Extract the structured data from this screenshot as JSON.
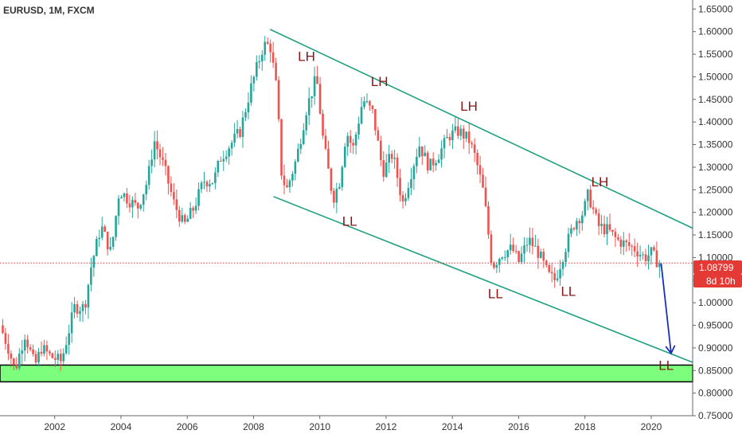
{
  "header": {
    "title": "EURUSD, 1M, FXCM"
  },
  "colors": {
    "up": "#26a69a",
    "down": "#ef5350",
    "channel": "#1fa080",
    "support_fill": "#7dff7d",
    "support_border": "#000000",
    "annotation": "#8b1414",
    "arrow": "#1a2fb5",
    "price_line": "#e53935",
    "price_badge": "#e53935",
    "axis_text": "#333333"
  },
  "price_badge": {
    "value": "1.08799",
    "countdown": "8d 10h"
  },
  "chart_data": {
    "type": "candlestick",
    "symbol": "EURUSD",
    "timeframe": "1M",
    "source": "FXCM",
    "title": "EURUSD, 1M, FXCM",
    "x_range": [
      2000.35,
      2021.25
    ],
    "y_range": [
      0.75,
      1.67
    ],
    "x_ticks": [
      "2002",
      "2004",
      "2006",
      "2008",
      "2010",
      "2012",
      "2014",
      "2016",
      "2018",
      "2020"
    ],
    "y_ticks": [
      "0.75000",
      "0.80000",
      "0.85000",
      "0.90000",
      "0.95000",
      "1.00000",
      "1.05000",
      "1.10000",
      "1.15000",
      "1.20000",
      "1.25000",
      "1.30000",
      "1.35000",
      "1.40000",
      "1.45000",
      "1.50000",
      "1.55000",
      "1.60000",
      "1.65000"
    ],
    "current_price": 1.08799,
    "path": [
      [
        2000.35,
        0.95
      ],
      [
        2000.6,
        0.9
      ],
      [
        2000.8,
        0.85
      ],
      [
        2001.1,
        0.93
      ],
      [
        2001.4,
        0.86
      ],
      [
        2001.6,
        0.9
      ],
      [
        2001.9,
        0.88
      ],
      [
        2002.2,
        0.87
      ],
      [
        2002.6,
        0.99
      ],
      [
        2002.9,
        0.99
      ],
      [
        2003.1,
        1.08
      ],
      [
        2003.4,
        1.17
      ],
      [
        2003.7,
        1.11
      ],
      [
        2003.95,
        1.25
      ],
      [
        2004.2,
        1.23
      ],
      [
        2004.5,
        1.21
      ],
      [
        2004.8,
        1.27
      ],
      [
        2005.0,
        1.36
      ],
      [
        2005.3,
        1.3
      ],
      [
        2005.6,
        1.22
      ],
      [
        2005.9,
        1.17
      ],
      [
        2006.2,
        1.21
      ],
      [
        2006.5,
        1.27
      ],
      [
        2006.8,
        1.27
      ],
      [
        2007.0,
        1.32
      ],
      [
        2007.3,
        1.35
      ],
      [
        2007.6,
        1.38
      ],
      [
        2007.9,
        1.47
      ],
      [
        2008.1,
        1.52
      ],
      [
        2008.3,
        1.57
      ],
      [
        2008.5,
        1.57
      ],
      [
        2008.7,
        1.47
      ],
      [
        2008.85,
        1.28
      ],
      [
        2009.0,
        1.25
      ],
      [
        2009.3,
        1.32
      ],
      [
        2009.6,
        1.43
      ],
      [
        2009.9,
        1.5
      ],
      [
        2010.1,
        1.36
      ],
      [
        2010.4,
        1.23
      ],
      [
        2010.6,
        1.27
      ],
      [
        2010.8,
        1.38
      ],
      [
        2011.0,
        1.34
      ],
      [
        2011.3,
        1.45
      ],
      [
        2011.6,
        1.42
      ],
      [
        2011.9,
        1.29
      ],
      [
        2012.2,
        1.33
      ],
      [
        2012.5,
        1.22
      ],
      [
        2012.8,
        1.3
      ],
      [
        2013.0,
        1.35
      ],
      [
        2013.3,
        1.3
      ],
      [
        2013.6,
        1.33
      ],
      [
        2013.9,
        1.37
      ],
      [
        2014.2,
        1.38
      ],
      [
        2014.5,
        1.36
      ],
      [
        2014.7,
        1.32
      ],
      [
        2014.95,
        1.24
      ],
      [
        2015.2,
        1.08
      ],
      [
        2015.5,
        1.11
      ],
      [
        2015.8,
        1.12
      ],
      [
        2016.0,
        1.09
      ],
      [
        2016.3,
        1.14
      ],
      [
        2016.6,
        1.11
      ],
      [
        2016.9,
        1.06
      ],
      [
        2017.1,
        1.05
      ],
      [
        2017.4,
        1.12
      ],
      [
        2017.7,
        1.18
      ],
      [
        2017.95,
        1.2
      ],
      [
        2018.1,
        1.24
      ],
      [
        2018.4,
        1.17
      ],
      [
        2018.7,
        1.16
      ],
      [
        2018.95,
        1.14
      ],
      [
        2019.2,
        1.13
      ],
      [
        2019.5,
        1.12
      ],
      [
        2019.8,
        1.1
      ],
      [
        2020.0,
        1.11
      ],
      [
        2020.2,
        1.09
      ],
      [
        2020.25,
        1.088
      ]
    ],
    "support_zone": {
      "low": 0.825,
      "high": 0.862,
      "x_start": 2000.35,
      "x_end": 2021.25
    },
    "channel": {
      "upper": [
        [
          2008.5,
          1.605
        ],
        [
          2021.25,
          1.165
        ]
      ],
      "lower": [
        [
          2008.6,
          1.235
        ],
        [
          2021.25,
          0.868
        ]
      ]
    },
    "projection_arrow": {
      "from": [
        2020.3,
        1.087
      ],
      "to": [
        2020.6,
        0.888
      ]
    },
    "annotations": [
      {
        "text": "LH",
        "x": 2009.6,
        "y": 1.535
      },
      {
        "text": "LH",
        "x": 2011.8,
        "y": 1.48
      },
      {
        "text": "LH",
        "x": 2014.5,
        "y": 1.425
      },
      {
        "text": "LH",
        "x": 2018.45,
        "y": 1.258
      },
      {
        "text": "LL",
        "x": 2010.9,
        "y": 1.17
      },
      {
        "text": "LL",
        "x": 2015.3,
        "y": 1.01
      },
      {
        "text": "LL",
        "x": 2017.5,
        "y": 1.015
      },
      {
        "text": "LL",
        "x": 2020.45,
        "y": 0.851
      }
    ]
  }
}
